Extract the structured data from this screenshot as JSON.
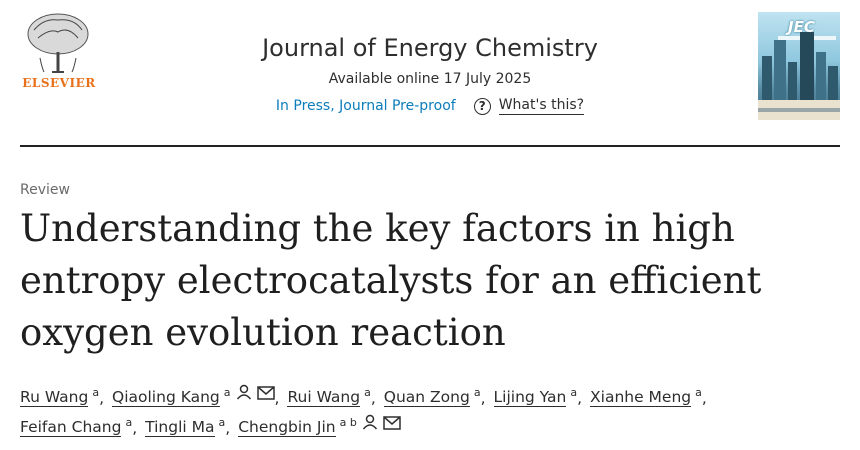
{
  "header": {
    "publisher": "ELSEVIER",
    "journal_title": "Journal of Energy Chemistry",
    "available_online": "Available online 17 July 2025",
    "status_link": "In Press, Journal Pre-proof",
    "whats_this": "What's this?",
    "cover_title": "JEC"
  },
  "article": {
    "type": "Review",
    "title": "Understanding the key factors in high entropy electrocatalysts for an efficient oxygen evolution reaction",
    "authors": [
      {
        "name": "Ru Wang",
        "aff": "a"
      },
      {
        "name": "Qiaoling Kang",
        "aff": "a"
      },
      {
        "name": "Rui Wang",
        "aff": "a"
      },
      {
        "name": "Quan Zong",
        "aff": "a"
      },
      {
        "name": "Lijing Yan",
        "aff": "a"
      },
      {
        "name": "Xianhe Meng",
        "aff": "a"
      },
      {
        "name": "Feifan Chang",
        "aff": "a"
      },
      {
        "name": "Tingli Ma",
        "aff": "a"
      },
      {
        "name": "Chengbin Jin",
        "aff": "a b"
      }
    ]
  },
  "icons": {
    "help": "question-circle-icon",
    "person": "person-icon",
    "email": "envelope-icon"
  },
  "colors": {
    "publisher_orange": "#e9711c",
    "link_blue": "#0c7dbb",
    "text": "#1f1f1f"
  }
}
